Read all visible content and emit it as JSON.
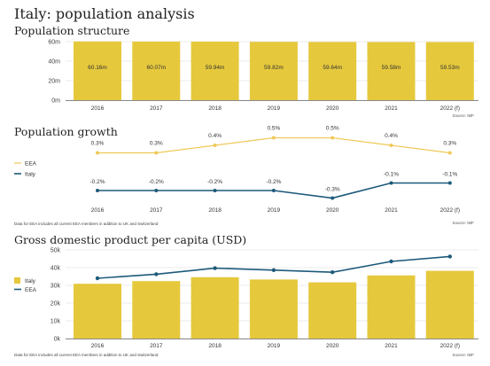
{
  "header": {
    "title": "Italy: population analysis"
  },
  "colors": {
    "italy": "#e6c83c",
    "italy_line": "#1d5a7a",
    "eea_line": "#efc95a",
    "grid": "#e4e4e4",
    "axis": "#666666"
  },
  "chart_data": [
    {
      "type": "bar",
      "title": "Population structure",
      "categories": [
        "2016",
        "2017",
        "2018",
        "2019",
        "2020",
        "2021",
        "2022 (f)"
      ],
      "values": [
        60.16,
        60.07,
        59.94,
        59.82,
        59.64,
        59.58,
        59.53
      ],
      "value_labels": [
        "60.16m",
        "60.07m",
        "59.94m",
        "59.82m",
        "59.64m",
        "59.58m",
        "59.53m"
      ],
      "ylim": [
        0,
        60
      ],
      "yticks": [
        "0m",
        "20m",
        "40m",
        "60m"
      ],
      "grid": true,
      "source": "Source: IMF"
    },
    {
      "type": "line",
      "title": "Population growth",
      "categories": [
        "2016",
        "2017",
        "2018",
        "2019",
        "2020",
        "2021",
        "2022 (f)"
      ],
      "series": [
        {
          "name": "EEA",
          "values": [
            0.3,
            0.3,
            0.4,
            0.5,
            0.5,
            0.4,
            0.3
          ],
          "labels": [
            "0.3%",
            "0.3%",
            "0.4%",
            "0.5%",
            "0.5%",
            "0.4%",
            "0.3%"
          ]
        },
        {
          "name": "Italy",
          "values": [
            -0.2,
            -0.2,
            -0.2,
            -0.2,
            -0.3,
            -0.1,
            -0.1
          ],
          "labels": [
            "-0.2%",
            "-0.2%",
            "-0.2%",
            "-0.2%",
            "-0.3%",
            "-0.1%",
            "-0.1%"
          ]
        }
      ],
      "legend": "left",
      "note": "Data for EEA includes all current EEA members in addition to UK and Switzerland",
      "source": "Source: IMF"
    },
    {
      "type": "bar",
      "title": "Gross domestic product per capita (USD)",
      "categories": [
        "2016",
        "2017",
        "2018",
        "2019",
        "2020",
        "2021",
        "2022 (f)"
      ],
      "series": [
        {
          "name": "Italy",
          "type": "bar",
          "values": [
            30900,
            32400,
            34600,
            33300,
            31700,
            35600,
            38200
          ]
        },
        {
          "name": "EEA",
          "type": "line",
          "values": [
            34000,
            36300,
            39700,
            38600,
            37400,
            43500,
            46300
          ]
        }
      ],
      "ylim": [
        0,
        50000
      ],
      "yticks": [
        "0k",
        "10k",
        "20k",
        "30k",
        "40k",
        "50k"
      ],
      "grid": true,
      "legend": "left",
      "note": "Data for EEA includes all current EEA members in addition to UK and Switzerland",
      "source": "Source: IMF"
    }
  ]
}
